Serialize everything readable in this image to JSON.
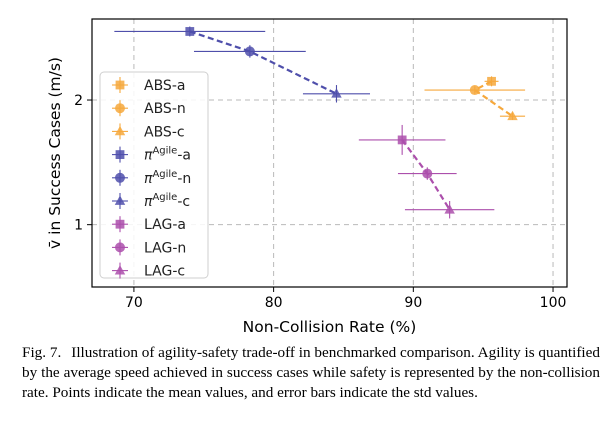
{
  "chart_data": {
    "type": "scatter",
    "xlabel": "Non-Collision Rate (%)",
    "ylabel": "v̄ in Success Cases (m/s)",
    "xlim": [
      67,
      101
    ],
    "ylim": [
      0.5,
      2.65
    ],
    "xticks": [
      70,
      80,
      90,
      100
    ],
    "yticks": [
      1,
      2
    ],
    "grid": "dashed",
    "legend_position": "left",
    "groups": [
      {
        "color": "#f6a83c",
        "points": [
          {
            "marker": "square",
            "label_base": "ABS",
            "label_sup": "",
            "label_suffix": "-a",
            "x": 95.6,
            "y": 2.15,
            "xerr": 0.5,
            "yerr": 0.04
          },
          {
            "marker": "circle",
            "label_base": "ABS",
            "label_sup": "",
            "label_suffix": "-n",
            "x": 94.4,
            "y": 2.08,
            "xerr": 3.6,
            "yerr": 0.03
          },
          {
            "marker": "triangle",
            "label_base": "ABS",
            "label_sup": "",
            "label_suffix": "-c",
            "x": 97.1,
            "y": 1.87,
            "xerr": 0.9,
            "yerr": 0.03
          }
        ]
      },
      {
        "color": "#4f4fab",
        "points": [
          {
            "marker": "square",
            "label_base": "π",
            "label_sup": "Agile",
            "label_suffix": "-a",
            "x": 74.0,
            "y": 2.55,
            "xerr": 5.4,
            "yerr": 0.04
          },
          {
            "marker": "circle",
            "label_base": "π",
            "label_sup": "Agile",
            "label_suffix": "-n",
            "x": 78.3,
            "y": 2.39,
            "xerr": 4.0,
            "yerr": 0.05
          },
          {
            "marker": "triangle",
            "label_base": "π",
            "label_sup": "Agile",
            "label_suffix": "-c",
            "x": 84.5,
            "y": 2.05,
            "xerr": 2.4,
            "yerr": 0.07
          }
        ]
      },
      {
        "color": "#ac4fac",
        "points": [
          {
            "marker": "square",
            "label_base": "LAG",
            "label_sup": "",
            "label_suffix": "-a",
            "x": 89.2,
            "y": 1.68,
            "xerr": 3.1,
            "yerr": 0.12
          },
          {
            "marker": "circle",
            "label_base": "LAG",
            "label_sup": "",
            "label_suffix": "-n",
            "x": 91.0,
            "y": 1.41,
            "xerr": 2.1,
            "yerr": 0.05
          },
          {
            "marker": "triangle",
            "label_base": "LAG",
            "label_sup": "",
            "label_suffix": "-c",
            "x": 92.6,
            "y": 1.12,
            "xerr": 3.2,
            "yerr": 0.07
          }
        ]
      }
    ]
  },
  "caption": {
    "label": "Fig. 7.",
    "text": "Illustration of agility-safety trade-off in benchmarked comparison. Agility is quantified by the average speed achieved in success cases while safety is represented by the non-collision rate. Points indicate the mean values, and error bars indicate the std values."
  }
}
